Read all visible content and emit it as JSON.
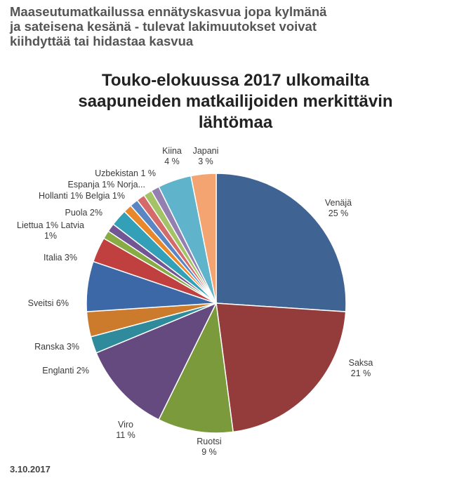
{
  "article": {
    "headline": "Maaseutumatkailussa ennätyskasvua jopa kylmänä\nja sateisena kesänä - tulevat lakimuutokset voivat\nkiihdyttää tai hidastaa kasvua",
    "date": "3.10.2017"
  },
  "chart_data": {
    "type": "pie",
    "title": "Touko-elokuussa 2017 ulkomailta\nsaapuneiden matkailijoiden merkittävin\nlähtömaa",
    "slices": [
      {
        "name": "Venäjä",
        "value": 25,
        "label": "Venäjä\n25 %",
        "color": "#3f6393"
      },
      {
        "name": "Saksa",
        "value": 21,
        "label": "Saksa\n21 %",
        "color": "#943c3b"
      },
      {
        "name": "Ruotsi",
        "value": 9,
        "label": "Ruotsi\n9 %",
        "color": "#7a9a3c"
      },
      {
        "name": "Viro",
        "value": 11,
        "label": "Viro\n11 %",
        "color": "#644a7e"
      },
      {
        "name": "Englanti",
        "value": 2,
        "label": "Englanti 2%",
        "color": "#2f8a9c"
      },
      {
        "name": "Ranska",
        "value": 3,
        "label": "Ranska 3%",
        "color": "#cc7a2c"
      },
      {
        "name": "Sveitsi",
        "value": 6,
        "label": "Sveitsi 6%",
        "color": "#3c68a8"
      },
      {
        "name": "Italia",
        "value": 3,
        "label": "Italia 3%",
        "color": "#c04040"
      },
      {
        "name": "Latvia",
        "value": 1,
        "label": "",
        "color": "#88ac44"
      },
      {
        "name": "Liettua",
        "value": 1,
        "label": "Liettua 1% Latvia\n1%",
        "color": "#725594"
      },
      {
        "name": "Puola",
        "value": 2,
        "label": "Puola 2%",
        "color": "#34a0b8"
      },
      {
        "name": "Belgia",
        "value": 1,
        "label": "",
        "color": "#e8882c"
      },
      {
        "name": "Hollanti",
        "value": 1,
        "label": "Hollanti 1% Belgia 1%",
        "color": "#5b86c4"
      },
      {
        "name": "Espanja",
        "value": 1,
        "label": "Espanja 1% Norja...",
        "color": "#d46a6a"
      },
      {
        "name": "Norja",
        "value": 1,
        "label": "",
        "color": "#a4c266"
      },
      {
        "name": "Uzbekistan",
        "value": 1,
        "label": "Uzbekistan 1 %",
        "color": "#9480b0"
      },
      {
        "name": "Kiina",
        "value": 4,
        "label": "Kiina\n4 %",
        "color": "#5fb4cc"
      },
      {
        "name": "Japani",
        "value": 3,
        "label": "Japani\n3 %",
        "color": "#f4a470"
      }
    ]
  }
}
